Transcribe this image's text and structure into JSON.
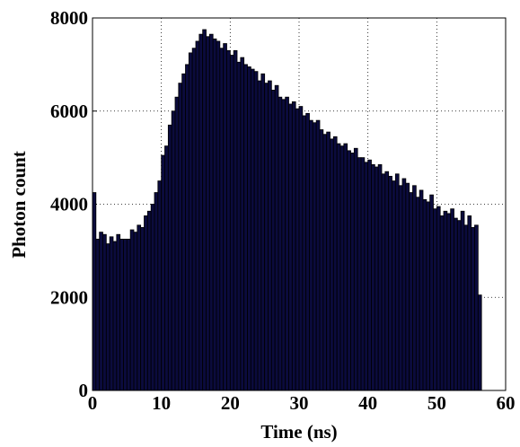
{
  "chart_data": {
    "type": "histogram",
    "xlabel": "Time (ns)",
    "ylabel": "Photon count",
    "bins": [
      0,
      0.5,
      1,
      1.5,
      2,
      2.5,
      3,
      3.5,
      4,
      4.5,
      5,
      5.5,
      6,
      6.5,
      7,
      7.5,
      8,
      8.5,
      9,
      9.5,
      10,
      10.5,
      11,
      11.5,
      12,
      12.5,
      13,
      13.5,
      14,
      14.5,
      15,
      15.5,
      16,
      16.5,
      17,
      17.5,
      18,
      18.5,
      19,
      19.5,
      20,
      20.5,
      21,
      21.5,
      22,
      22.5,
      23,
      23.5,
      24,
      24.5,
      25,
      25.5,
      26,
      26.5,
      27,
      27.5,
      28,
      28.5,
      29,
      29.5,
      30,
      30.5,
      31,
      31.5,
      32,
      32.5,
      33,
      33.5,
      34,
      34.5,
      35,
      35.5,
      36,
      36.5,
      37,
      37.5,
      38,
      38.5,
      39,
      39.5,
      40,
      40.5,
      41,
      41.5,
      42,
      42.5,
      43,
      43.5,
      44,
      44.5,
      45,
      45.5,
      46,
      46.5,
      47,
      47.5,
      48,
      48.5,
      49,
      49.5,
      50,
      50.5,
      51,
      51.5,
      52,
      52.5,
      53,
      53.5,
      54,
      54.5,
      55,
      55.5,
      56,
      56.5
    ],
    "values": [
      4250,
      3250,
      3400,
      3350,
      3150,
      3300,
      3200,
      3350,
      3250,
      3250,
      3250,
      3450,
      3400,
      3550,
      3500,
      3750,
      3850,
      4000,
      4250,
      4500,
      5050,
      5250,
      5700,
      6000,
      6300,
      6600,
      6800,
      7000,
      7250,
      7350,
      7500,
      7650,
      7750,
      7600,
      7650,
      7550,
      7500,
      7350,
      7450,
      7300,
      7200,
      7300,
      7050,
      7150,
      7000,
      6950,
      6900,
      6850,
      6650,
      6800,
      6600,
      6650,
      6450,
      6550,
      6300,
      6250,
      6300,
      6150,
      6200,
      6050,
      6100,
      5900,
      5950,
      5800,
      5750,
      5800,
      5600,
      5500,
      5550,
      5400,
      5450,
      5300,
      5250,
      5300,
      5150,
      5100,
      5200,
      5000,
      5000,
      4900,
      4950,
      4850,
      4800,
      4850,
      4650,
      4700,
      4600,
      4500,
      4650,
      4400,
      4550,
      4450,
      4250,
      4400,
      4150,
      4300,
      4100,
      4050,
      4200,
      3900,
      3950,
      3750,
      3850,
      3800,
      3900,
      3700,
      3650,
      3850,
      3550,
      3750,
      3500,
      3550,
      2050
    ],
    "color": "#0b0b3d",
    "xlim": [
      0,
      60
    ],
    "xticks": [
      0,
      10,
      20,
      30,
      40,
      50,
      60
    ],
    "ylim": [
      0,
      8000
    ],
    "yticks": [
      0,
      2000,
      4000,
      6000,
      8000
    ],
    "grid": true
  }
}
